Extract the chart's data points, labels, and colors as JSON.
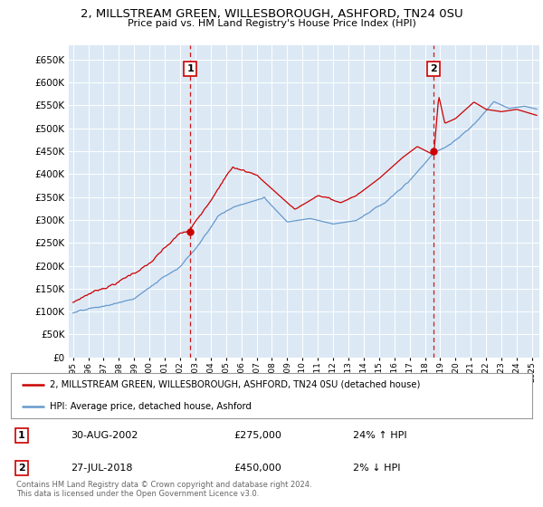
{
  "title": "2, MILLSTREAM GREEN, WILLESBOROUGH, ASHFORD, TN24 0SU",
  "subtitle": "Price paid vs. HM Land Registry's House Price Index (HPI)",
  "ylim": [
    0,
    680000
  ],
  "xlim_start": 1994.7,
  "xlim_end": 2025.5,
  "legend_line1": "2, MILLSTREAM GREEN, WILLESBOROUGH, ASHFORD, TN24 0SU (detached house)",
  "legend_line2": "HPI: Average price, detached house, Ashford",
  "sale1_date": "30-AUG-2002",
  "sale1_price": "£275,000",
  "sale1_hpi": "24% ↑ HPI",
  "sale2_date": "27-JUL-2018",
  "sale2_price": "£450,000",
  "sale2_hpi": "2% ↓ HPI",
  "copyright_text": "Contains HM Land Registry data © Crown copyright and database right 2024.\nThis data is licensed under the Open Government Licence v3.0.",
  "line_color_red": "#cc0000",
  "line_color_blue": "#6699cc",
  "marker1_x": 2002.66,
  "marker2_x": 2018.58,
  "marker1_y": 275000,
  "marker2_y": 450000,
  "background_color": "#ffffff",
  "chart_bg_color": "#dce9f5",
  "grid_color": "#ffffff"
}
